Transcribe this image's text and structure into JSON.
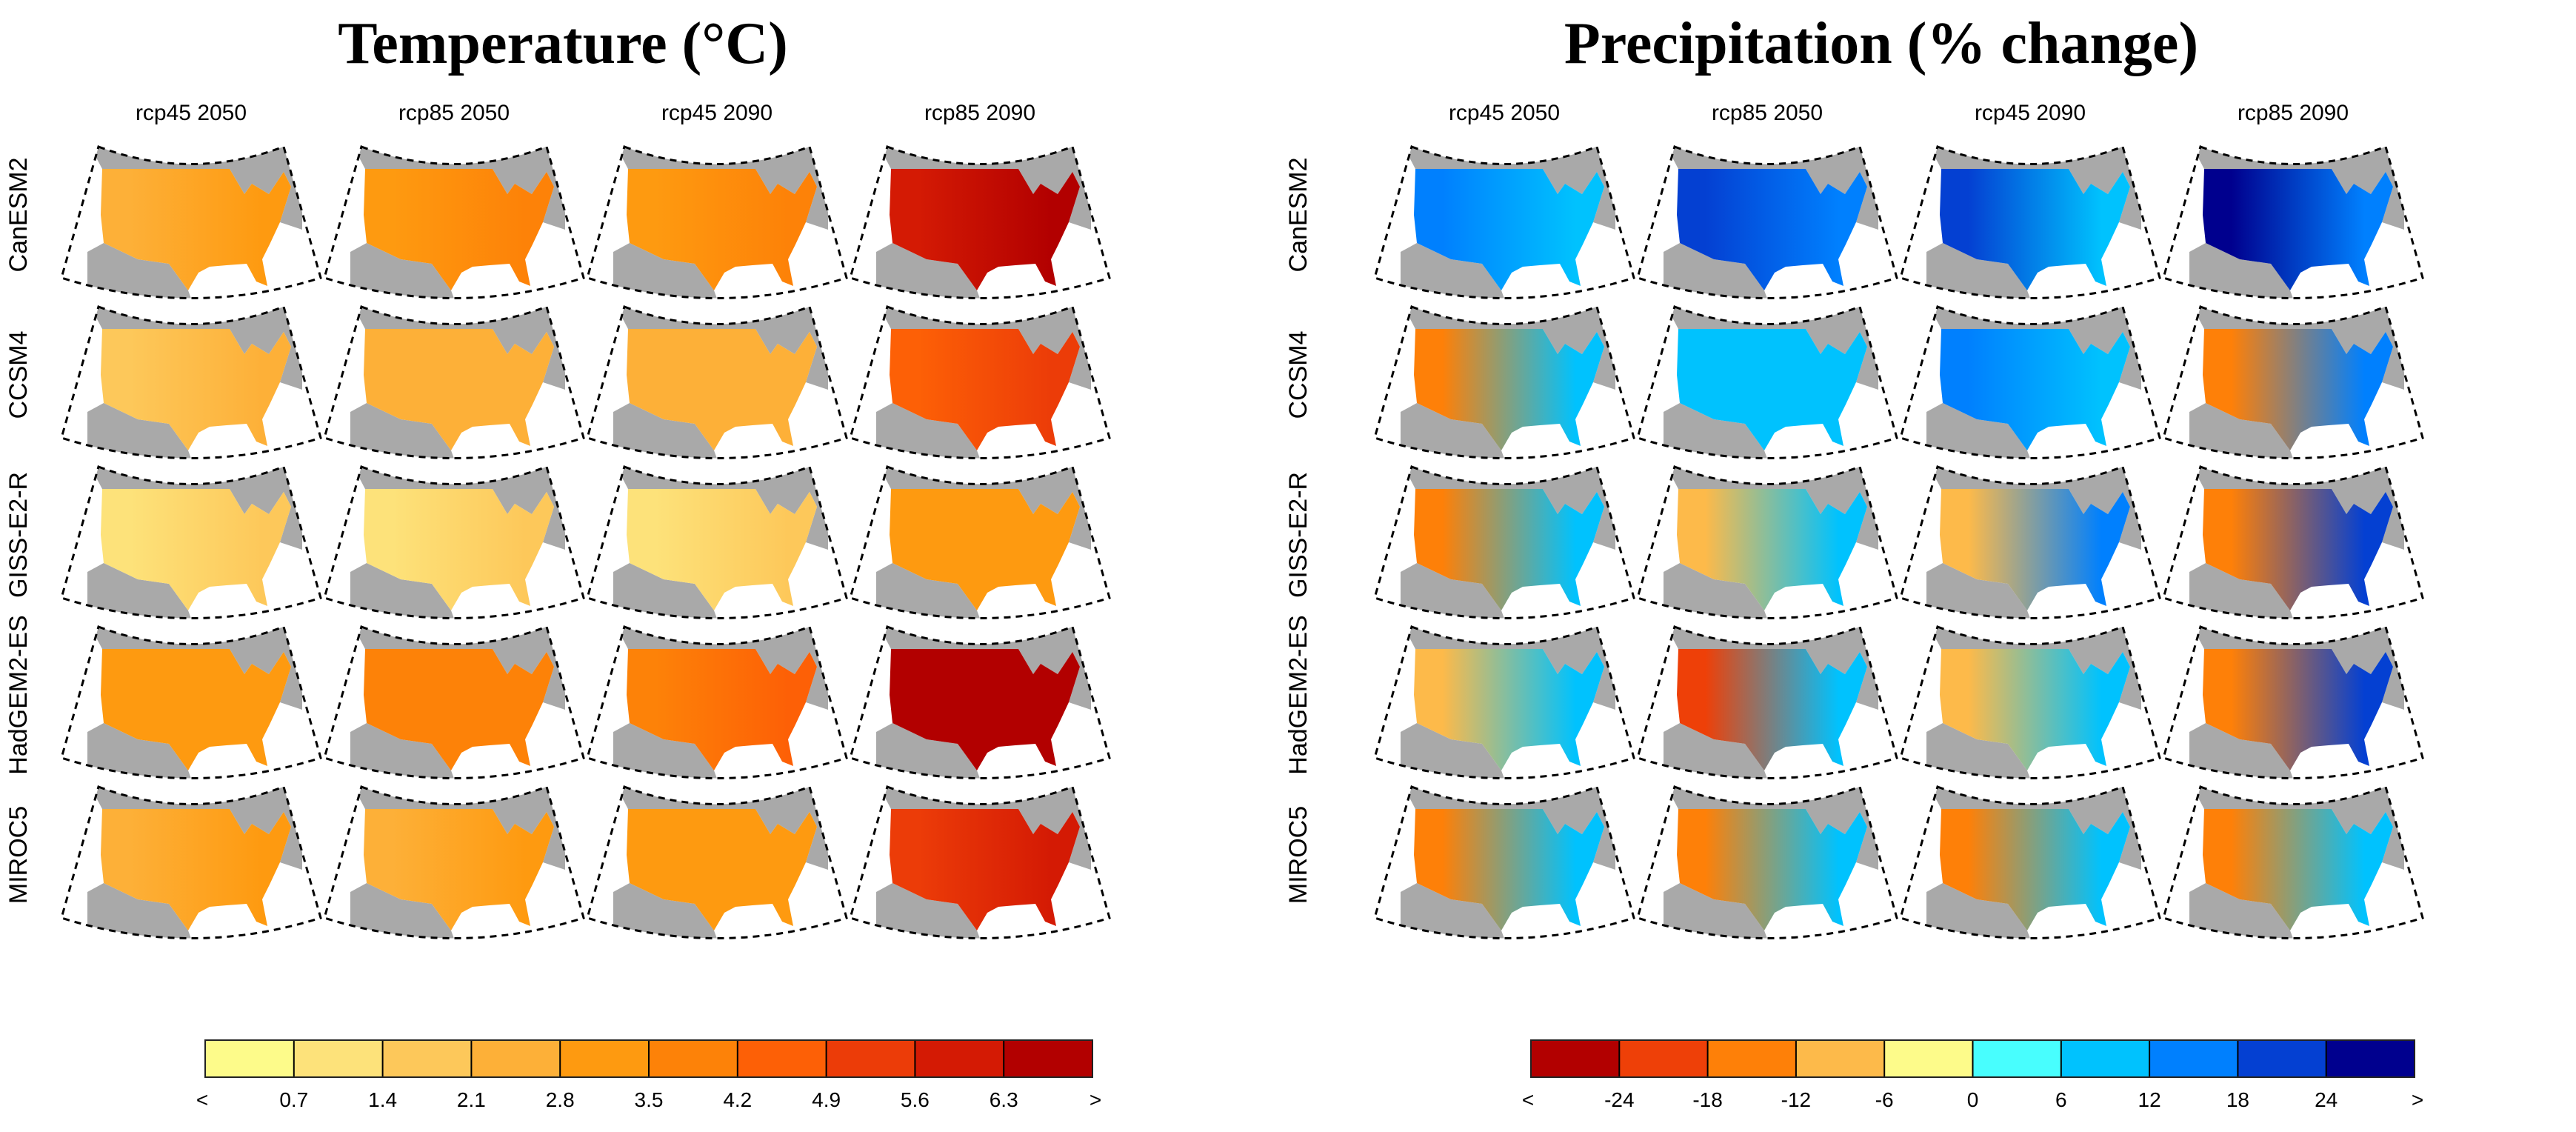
{
  "figures": [
    {
      "id": "temperature",
      "title": "Temperature (°C)",
      "columns": [
        "rcp45 2050",
        "rcp85 2050",
        "rcp45 2090",
        "rcp85 2090"
      ],
      "rows": [
        "CanESM2",
        "CCSM4",
        "GISS-E2-R",
        "HadGEM2-ES",
        "MIROC5"
      ],
      "colorbar": {
        "colors": [
          "#fdfb8a",
          "#fde27a",
          "#fdc85a",
          "#fdb038",
          "#fe9a10",
          "#fd8208",
          "#fd6006",
          "#ec3c08",
          "#d41a04",
          "#b20000"
        ],
        "labels": [
          "<",
          "0.7",
          "1.4",
          "2.1",
          "2.8",
          "3.5",
          "4.2",
          "4.9",
          "5.6",
          "6.3",
          ">"
        ]
      },
      "panel_bins": [
        [
          [
            3,
            4
          ],
          [
            4,
            5
          ],
          [
            4,
            5
          ],
          [
            8,
            9
          ]
        ],
        [
          [
            2,
            3
          ],
          [
            3,
            3
          ],
          [
            3,
            3
          ],
          [
            6,
            7
          ]
        ],
        [
          [
            1,
            2
          ],
          [
            1,
            2
          ],
          [
            1,
            2
          ],
          [
            4,
            4
          ]
        ],
        [
          [
            4,
            4
          ],
          [
            5,
            5
          ],
          [
            5,
            6
          ],
          [
            9,
            9
          ]
        ],
        [
          [
            3,
            4
          ],
          [
            3,
            4
          ],
          [
            4,
            4
          ],
          [
            7,
            8
          ]
        ]
      ]
    },
    {
      "id": "precipitation",
      "title": "Precipitation (% change)",
      "columns": [
        "rcp45 2050",
        "rcp85 2050",
        "rcp45 2090",
        "rcp85 2090"
      ],
      "rows": [
        "CanESM2",
        "CCSM4",
        "GISS-E2-R",
        "HadGEM2-ES",
        "MIROC5"
      ],
      "colorbar": {
        "colors": [
          "#b20000",
          "#ee4008",
          "#fe8008",
          "#fdba4a",
          "#fdfb8a",
          "#48fefe",
          "#00c2fe",
          "#0080fe",
          "#0440d2",
          "#00008e"
        ],
        "labels": [
          "<",
          "-24",
          "-18",
          "-12",
          "-6",
          "0",
          "6",
          "12",
          "18",
          "24",
          ">"
        ]
      },
      "panel_bins": [
        [
          [
            7,
            6
          ],
          [
            8,
            7
          ],
          [
            8,
            6
          ],
          [
            9,
            7
          ]
        ],
        [
          [
            2,
            6
          ],
          [
            6,
            6
          ],
          [
            7,
            6
          ],
          [
            2,
            7
          ]
        ],
        [
          [
            2,
            6
          ],
          [
            3,
            6
          ],
          [
            3,
            7
          ],
          [
            2,
            8
          ]
        ],
        [
          [
            3,
            6
          ],
          [
            1,
            6
          ],
          [
            3,
            6
          ],
          [
            2,
            8
          ]
        ],
        [
          [
            2,
            6
          ],
          [
            2,
            6
          ],
          [
            2,
            6
          ],
          [
            2,
            6
          ]
        ]
      ]
    }
  ]
}
